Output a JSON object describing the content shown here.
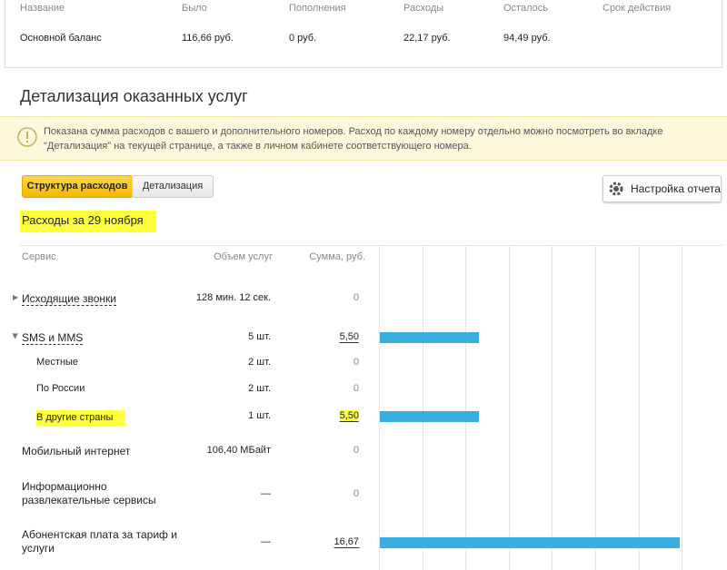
{
  "balance": {
    "headers": [
      "Название",
      "Было",
      "Пополнения",
      "Расходы",
      "Осталось",
      "Срок действия"
    ],
    "row": [
      "Основной баланс",
      "116,66 руб.",
      "0 руб.",
      "22,17 руб.",
      "94,49 руб."
    ]
  },
  "section_title": "Детализация оказанных услуг",
  "notice": "Показана сумма расходов с вашего и дополнительного номеров. Расход по каждому номеру отдельно можно посмотреть во вкладке \"Детализация\" на текущей странице, а также в личном кабинете соответствующего номера.",
  "tabs": [
    "Структура расходов",
    "Детализация"
  ],
  "settings_button": "Настройка отчета",
  "period": "Расходы за 29 ноября",
  "table": {
    "headers": [
      "Сервис",
      "Объем услуг",
      "Сумма, руб."
    ],
    "rows": [
      {
        "service": "Исходящие звонки",
        "volume": "128 мин. 12 сек.",
        "amount": 0,
        "level": "parent"
      },
      {
        "service": "SMS и MMS",
        "volume": "5 шт.",
        "amount": {
          "value": 5.5,
          "label": "5,50"
        },
        "level": "parent-open"
      },
      {
        "service": "Местные",
        "volume": "2 шт.",
        "amount": 0,
        "level": "child"
      },
      {
        "service": "По России",
        "volume": "2 шт.",
        "amount": 0,
        "level": "child"
      },
      {
        "service": "В другие страны",
        "volume": "1 шт.",
        "amount": {
          "value": 5.5,
          "label": "5,50"
        },
        "level": "child",
        "highlight": true
      },
      {
        "service": "Мобильный интернет",
        "volume": "106,40 МБайт",
        "amount": 0,
        "level": "plain"
      },
      {
        "service": "Информационно развлекательные сервисы",
        "volume": "—",
        "amount": 0,
        "level": "plain"
      },
      {
        "service": "Абонентская плата за тариф и услуги",
        "volume": "—",
        "amount": {
          "value": 16.67,
          "label": "16,67"
        },
        "level": "plain"
      }
    ]
  },
  "bar_color": "#3aaee0"
}
